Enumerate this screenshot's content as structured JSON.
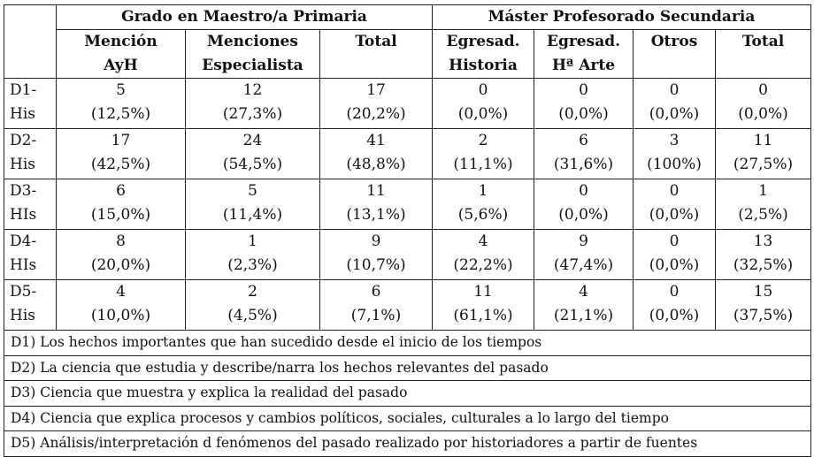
{
  "table": {
    "group_headers": [
      "Grado en Maestro/a Primaria",
      "Máster Profesorado Secundaria"
    ],
    "sub_headers": [
      [
        "Mención",
        "AyH"
      ],
      [
        "Menciones",
        "Especialista"
      ],
      [
        "Total"
      ],
      [
        "Egresad.",
        "Historia"
      ],
      [
        "Egresad.",
        "Hª Arte"
      ],
      [
        "Otros"
      ],
      [
        "Total"
      ]
    ],
    "rows": [
      {
        "label": [
          "D1-",
          "His"
        ],
        "cells": [
          [
            "5",
            "(12,5%)"
          ],
          [
            "12",
            "(27,3%)"
          ],
          [
            "17",
            "(20,2%)"
          ],
          [
            "0",
            "(0,0%)"
          ],
          [
            "0",
            "(0,0%)"
          ],
          [
            "0",
            "(0,0%)"
          ],
          [
            "0",
            "(0,0%)"
          ]
        ]
      },
      {
        "label": [
          "D2-",
          "His"
        ],
        "cells": [
          [
            "17",
            "(42,5%)"
          ],
          [
            "24",
            "(54,5%)"
          ],
          [
            "41",
            "(48,8%)"
          ],
          [
            "2",
            "(11,1%)"
          ],
          [
            "6",
            "(31,6%)"
          ],
          [
            "3",
            "(100%)"
          ],
          [
            "11",
            "(27,5%)"
          ]
        ]
      },
      {
        "label": [
          "D3-",
          "HIs"
        ],
        "cells": [
          [
            "6",
            "(15,0%)"
          ],
          [
            "5",
            "(11,4%)"
          ],
          [
            "11",
            "(13,1%)"
          ],
          [
            "1",
            "(5,6%)"
          ],
          [
            "0",
            "(0,0%)"
          ],
          [
            "0",
            "(0,0%)"
          ],
          [
            "1",
            "(2,5%)"
          ]
        ]
      },
      {
        "label": [
          "D4-",
          "HIs"
        ],
        "cells": [
          [
            "8",
            "(20,0%)"
          ],
          [
            "1",
            "(2,3%)"
          ],
          [
            "9",
            "(10,7%)"
          ],
          [
            "4",
            "(22,2%)"
          ],
          [
            "9",
            "(47,4%)"
          ],
          [
            "0",
            "(0,0%)"
          ],
          [
            "13",
            "(32,5%)"
          ]
        ]
      },
      {
        "label": [
          "D5-",
          "His"
        ],
        "cells": [
          [
            "4",
            "(10,0%)"
          ],
          [
            "2",
            "(4,5%)"
          ],
          [
            "6",
            "(7,1%)"
          ],
          [
            "11",
            "(61,1%)"
          ],
          [
            "4",
            "(21,1%)"
          ],
          [
            "0",
            "(0,0%)"
          ],
          [
            "15",
            "(37,5%)"
          ]
        ]
      }
    ],
    "legend": [
      "D1) Los hechos importantes que han sucedido desde el inicio de los tiempos",
      "D2) La ciencia que estudia y describe/narra los hechos relevantes del pasado",
      "D3) Ciencia que muestra y explica la realidad del pasado",
      "D4) Ciencia que explica procesos y cambios políticos, sociales, culturales a lo largo del tiempo",
      "D5) Análisis/interpretación d fenómenos del pasado realizado por historiadores a partir de fuentes"
    ]
  }
}
